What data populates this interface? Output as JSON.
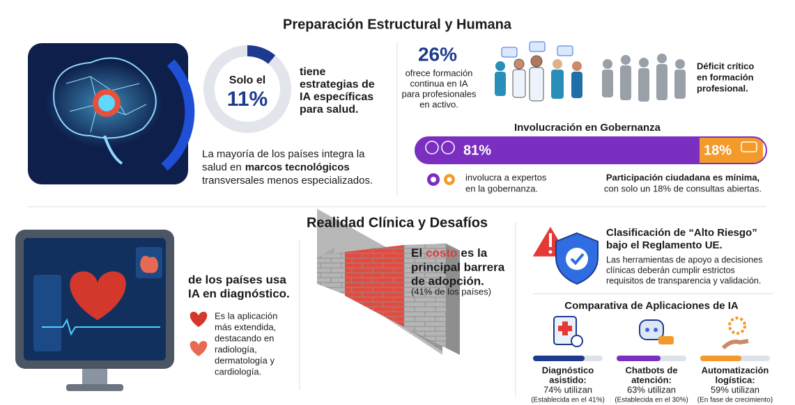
{
  "section_1": {
    "title": "Preparación Estructural y Humana",
    "strategy": {
      "prefix": "Solo el",
      "percent": {
        "value": 11,
        "label": "11%"
      },
      "text": [
        "tiene",
        "estrategias de",
        "IA específicas",
        "para salud."
      ]
    },
    "integration": {
      "line_1": "La mayoría de los países integra la",
      "line_2": [
        "salud en",
        "marcos tecnológicos"
      ],
      "line_3": "transversales menos especializados."
    },
    "training": {
      "percent": "26%",
      "text": [
        "ofrece formación",
        "continua en IA",
        "para profesionales",
        "en activo."
      ],
      "deficit": [
        "Déficit crítico",
        "en formación",
        "profesional."
      ]
    },
    "governance": {
      "title": "Involucración en Gobernanza",
      "experts": {
        "value": 81,
        "label": "81%",
        "text": [
          "involucra a expertos",
          "en la gobernanza."
        ]
      },
      "citizens": {
        "value": 18,
        "label": "18%",
        "text": [
          "Participación ciudadana es mínima,",
          "con solo un 18% de consultas abiertas."
        ]
      }
    }
  },
  "section_2": {
    "title": "Realidad Clínica y Desafíos",
    "diagnosis": {
      "heading": [
        "de los países usa",
        "IA en diagnóstico."
      ],
      "text": [
        "Es la aplicación",
        "más extendida,",
        "destacando en",
        "radiología,",
        "dermatología y",
        "cardiología."
      ]
    },
    "cost": {
      "heading_1": [
        "El",
        "costo",
        "es la"
      ],
      "heading": [
        "principal barrera",
        "de adopción."
      ],
      "note": "(41% de los países)"
    },
    "risk": {
      "title": [
        "Clasificación de “Alto Riesgo”",
        "bajo el Reglamento UE."
      ],
      "text": [
        "Las herramientas de apoyo a decisiones",
        "clínicas deberán cumplir estrictos",
        "requisitos de transparencia y validación."
      ]
    },
    "applications": {
      "title": "Comparativa de Aplicaciones de IA",
      "items": [
        {
          "name": [
            "Diagnóstico",
            "asistido:"
          ],
          "usage": {
            "value": 74,
            "label": "74% utilizan"
          },
          "note": "(Establecida en el 41%)"
        },
        {
          "name": [
            "Chatbots de",
            "atención:"
          ],
          "usage": {
            "value": 63,
            "label": "63% utilizan"
          },
          "note": "(Establecida en el 30%)"
        },
        {
          "name": [
            "Automatización",
            "logística:"
          ],
          "usage": {
            "value": 59,
            "label": "59% utilizan"
          },
          "note": "(En fase de crecimiento)"
        }
      ]
    }
  }
}
